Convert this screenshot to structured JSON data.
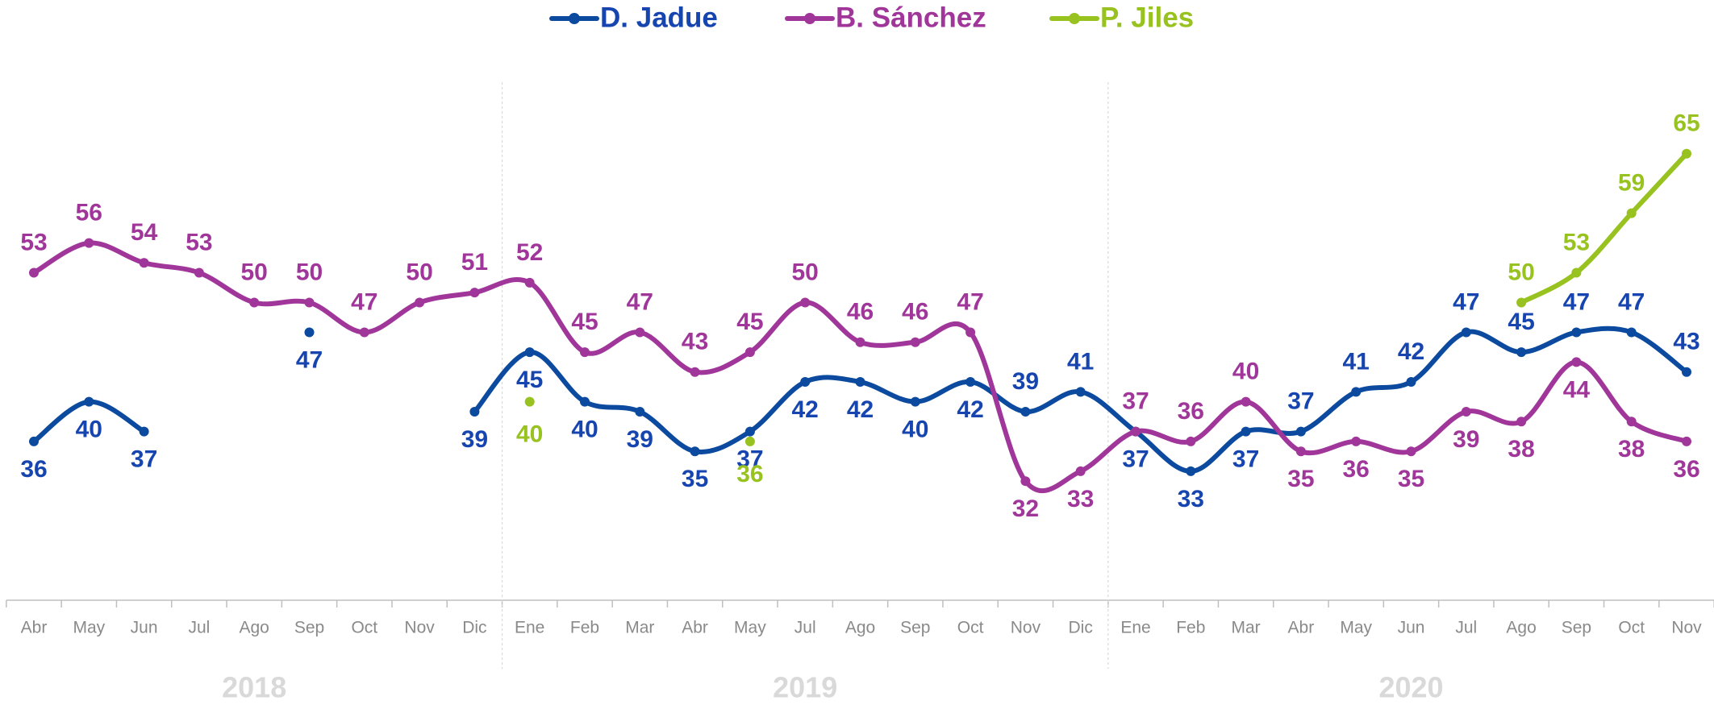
{
  "chart_data": {
    "type": "line",
    "categories": [
      "Abr",
      "May",
      "Jun",
      "Jul",
      "Ago",
      "Sep",
      "Oct",
      "Nov",
      "Dic",
      "Ene",
      "Feb",
      "Mar",
      "Abr",
      "May",
      "Jul",
      "Ago",
      "Sep",
      "Oct",
      "Nov",
      "Dic",
      "Ene",
      "Feb",
      "Mar",
      "Abr",
      "May",
      "Jun",
      "Jul",
      "Ago",
      "Sep",
      "Oct",
      "Nov"
    ],
    "x_groups": [
      "2018",
      "2019",
      "2020"
    ],
    "ylim": [
      20,
      80
    ],
    "legend": "top",
    "series": [
      {
        "name": "D. Jadue",
        "color": "#0b4a9e",
        "values": [
          36,
          40,
          37,
          null,
          null,
          47,
          null,
          null,
          39,
          45,
          40,
          39,
          35,
          37,
          42,
          42,
          40,
          42,
          39,
          41,
          37,
          33,
          37,
          37,
          41,
          42,
          47,
          45,
          47,
          47,
          43
        ]
      },
      {
        "name": "B. Sánchez",
        "color": "#a0369a",
        "values": [
          53,
          56,
          54,
          53,
          50,
          50,
          47,
          50,
          51,
          52,
          45,
          47,
          43,
          45,
          50,
          46,
          46,
          47,
          32,
          33,
          37,
          36,
          40,
          35,
          36,
          35,
          39,
          38,
          44,
          38,
          36
        ]
      },
      {
        "name": "P. Jiles",
        "color": "#98c21f",
        "values": [
          null,
          null,
          null,
          null,
          null,
          null,
          null,
          null,
          null,
          40,
          null,
          null,
          null,
          36,
          null,
          null,
          null,
          null,
          null,
          null,
          null,
          null,
          null,
          null,
          null,
          null,
          null,
          50,
          53,
          59,
          65
        ]
      }
    ]
  }
}
